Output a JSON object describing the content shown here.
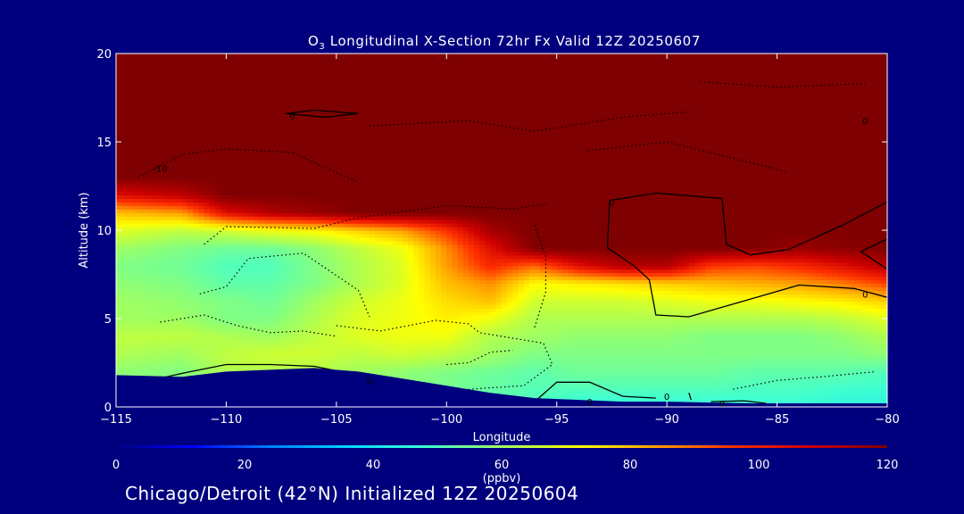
{
  "chart_data": {
    "type": "heatmap",
    "title_prefix": "O",
    "title_subscript": "3",
    "title_rest": " Longitudinal X-Section 72hr  Fx Valid 12Z 20250607",
    "xlabel": "Longitude",
    "ylabel": "Altitude (km)",
    "xlim": [
      -115,
      -80
    ],
    "ylim": [
      0,
      20
    ],
    "x_ticks": [
      -115,
      -110,
      -105,
      -100,
      -95,
      -90,
      -85,
      -80
    ],
    "x_tick_labels": [
      "−115",
      "−110",
      "−105",
      "−100",
      "−95",
      "−90",
      "−85",
      "−80"
    ],
    "y_ticks": [
      0,
      5,
      10,
      15,
      20
    ],
    "y_tick_labels": [
      "0",
      "5",
      "10",
      "15",
      "20"
    ],
    "colorbar": {
      "min": 0,
      "max": 120,
      "ticks": [
        0,
        20,
        40,
        60,
        80,
        100,
        120
      ],
      "tick_labels": [
        "0",
        "20",
        "40",
        "60",
        "80",
        "100",
        "120"
      ],
      "unit_label": "(ppbv)",
      "colors": [
        "#00007f",
        "#0000ff",
        "#0080ff",
        "#00d8ff",
        "#40ffd0",
        "#a0ff60",
        "#ffff00",
        "#ffa000",
        "#ff3000",
        "#cc0000",
        "#7f0000"
      ]
    },
    "colors": {
      "background": "#00007f",
      "stratosphere": "#7f0000"
    },
    "profile_longitudes": [
      -115,
      -112,
      -110,
      -108,
      -106,
      -104,
      -102,
      -100,
      -98,
      -96,
      -94,
      -92,
      -90,
      -88,
      -86,
      -84,
      -82,
      -80
    ],
    "terrain_km": [
      1.8,
      1.7,
      2.0,
      2.1,
      2.2,
      2.0,
      1.6,
      1.2,
      0.8,
      0.5,
      0.4,
      0.3,
      0.3,
      0.25,
      0.2,
      0.2,
      0.2,
      0.2
    ],
    "ozone_by_altitude_ppbv": {
      "0.5": [
        62,
        60,
        58,
        56,
        56,
        56,
        56,
        54,
        52,
        50,
        48,
        48,
        48,
        48,
        48,
        48,
        46,
        46
      ],
      "2": [
        58,
        56,
        62,
        62,
        62,
        60,
        58,
        56,
        54,
        52,
        54,
        54,
        54,
        54,
        52,
        52,
        52,
        50
      ],
      "3": [
        62,
        60,
        64,
        66,
        66,
        64,
        66,
        64,
        60,
        56,
        56,
        56,
        56,
        56,
        56,
        56,
        56,
        58
      ],
      "4": [
        64,
        64,
        62,
        60,
        64,
        68,
        70,
        70,
        62,
        60,
        58,
        58,
        58,
        56,
        56,
        56,
        58,
        62
      ],
      "5": [
        60,
        60,
        56,
        56,
        62,
        68,
        70,
        74,
        70,
        62,
        62,
        62,
        62,
        62,
        62,
        62,
        64,
        68
      ],
      "6": [
        60,
        58,
        56,
        54,
        60,
        66,
        70,
        76,
        80,
        66,
        66,
        66,
        68,
        70,
        70,
        72,
        74,
        78
      ],
      "7": [
        58,
        56,
        52,
        52,
        56,
        62,
        68,
        80,
        86,
        72,
        74,
        76,
        78,
        80,
        82,
        84,
        88,
        94
      ],
      "8": [
        56,
        54,
        50,
        50,
        56,
        62,
        68,
        84,
        98,
        90,
        104,
        112,
        112,
        96,
        94,
        98,
        104,
        112
      ],
      "9": [
        60,
        56,
        54,
        54,
        58,
        64,
        70,
        86,
        104,
        120,
        120,
        120,
        120,
        120,
        120,
        116,
        118,
        120
      ],
      "10": [
        68,
        64,
        66,
        70,
        72,
        78,
        84,
        96,
        114,
        120,
        120,
        120,
        120,
        120,
        120,
        120,
        120,
        120
      ],
      "11": [
        80,
        84,
        104,
        112,
        116,
        120,
        120,
        120,
        120,
        120,
        120,
        120,
        120,
        120,
        120,
        120,
        120,
        120
      ],
      "12": [
        104,
        110,
        120,
        120,
        120,
        120,
        120,
        120,
        120,
        120,
        120,
        120,
        120,
        120,
        120,
        120,
        120,
        120
      ],
      "13": [
        120,
        120,
        120,
        120,
        120,
        120,
        120,
        120,
        120,
        120,
        120,
        120,
        120,
        120,
        120,
        120,
        120,
        120
      ],
      "20": [
        120,
        120,
        120,
        120,
        120,
        120,
        120,
        120,
        120,
        120,
        120,
        120,
        120,
        120,
        120,
        120,
        120,
        120
      ]
    },
    "contour_labels": [
      {
        "text": "0",
        "lon": -107,
        "alt": 16.5
      },
      {
        "text": "-10",
        "lon": -113,
        "alt": 13.5
      },
      {
        "text": "0",
        "lon": -81,
        "alt": 16.2
      },
      {
        "text": "0",
        "lon": -92.5,
        "alt": 11.6
      },
      {
        "text": "0",
        "lon": -81,
        "alt": 6.4
      },
      {
        "text": "0",
        "lon": -103.5,
        "alt": 1.5
      },
      {
        "text": "0",
        "lon": -93.5,
        "alt": 0.3
      },
      {
        "text": "0",
        "lon": -90,
        "alt": 0.6
      },
      {
        "text": "0",
        "lon": -87.5,
        "alt": 0.2
      }
    ]
  },
  "footer_text": "Chicago/Detroit (42°N) Initialized 12Z 20250604"
}
